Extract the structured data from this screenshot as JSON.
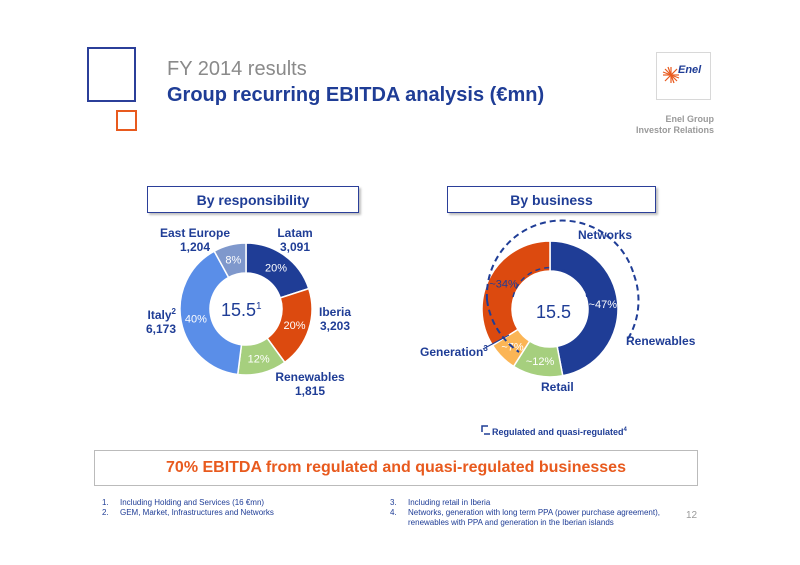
{
  "header": {
    "subtitle": "FY 2014 results",
    "title": "Group recurring EBITDA analysis (€mn)",
    "logo_text": "Enel",
    "group_name": "Enel Group",
    "group_sub": "Investor Relations"
  },
  "panels": {
    "left_title": "By responsibility",
    "right_title": "By business"
  },
  "chart_data": [
    {
      "type": "pie",
      "title": "By responsibility",
      "center_value": "15.5",
      "center_sup": "1",
      "categories": [
        "Latam",
        "Iberia",
        "Renewables",
        "Italy",
        "East Europe"
      ],
      "values": [
        20,
        20,
        12,
        40,
        8
      ],
      "amounts": [
        "3,091",
        "3,203",
        "1,815",
        "6,173",
        "1,204"
      ],
      "labels": [
        "20%",
        "20%",
        "12%",
        "40%",
        "8%"
      ],
      "label_sups": [
        "",
        "",
        "",
        "2",
        ""
      ],
      "colors": [
        "#1f3d96",
        "#dc4a0f",
        "#a6cf7e",
        "#5a8ee8",
        "#7f98cc"
      ]
    },
    {
      "type": "pie",
      "title": "By business",
      "center_value": "15.5",
      "categories": [
        "Networks",
        "Renewables",
        "Retail",
        "Generation"
      ],
      "values": [
        47,
        12,
        7,
        34
      ],
      "labels": [
        "~47%",
        "~12%",
        "~7%",
        "~34%"
      ],
      "label_sups": [
        "",
        "",
        "",
        "3"
      ],
      "colors": [
        "#1f3d96",
        "#a6cf7e",
        "#fbb555",
        "#dc4a0f"
      ],
      "legend": "Regulated and quasi-regulated",
      "legend_sup": "4"
    }
  ],
  "banner": "70% EBITDA from regulated and quasi-regulated businesses",
  "footnotes": [
    {
      "num": "1.",
      "text": "Including Holding and Services (16 €mn)"
    },
    {
      "num": "2.",
      "text": "GEM, Market, Infrastructures and Networks"
    },
    {
      "num": "3.",
      "text": "Including retail in Iberia"
    },
    {
      "num": "4.",
      "text": "Networks, generation with long term PPA (power purchase agreement),"
    },
    {
      "num": "",
      "text": "renewables with PPA and generation in the Iberian islands"
    }
  ],
  "page_number": "12"
}
